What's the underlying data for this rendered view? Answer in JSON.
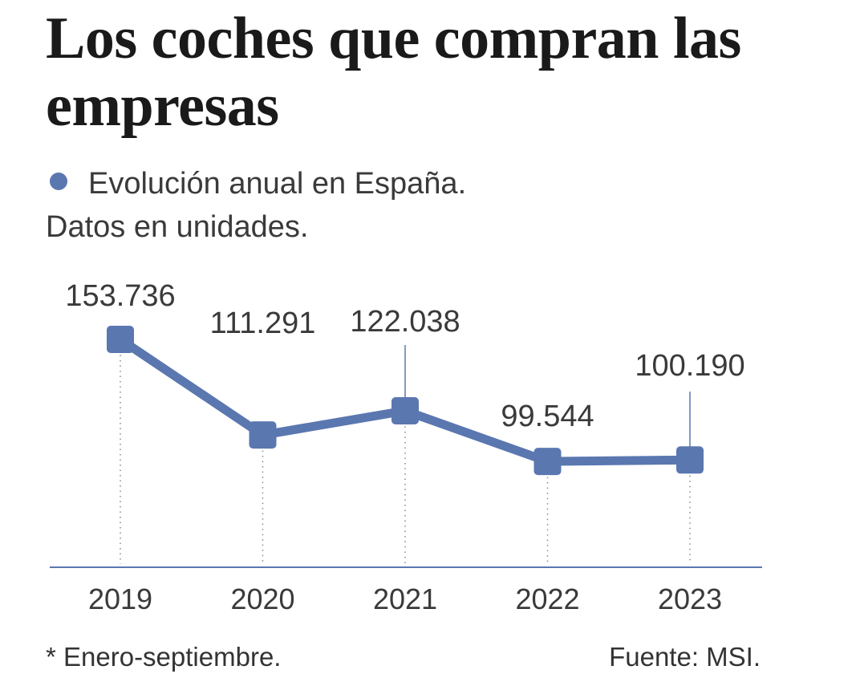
{
  "title": "Los coches que compran las empresas",
  "legend_text": "Evolución anual en España.",
  "subtitle": "Datos en unidades.",
  "footnote": "* Enero-septiembre.",
  "source": "Fuente: MSI.",
  "colors": {
    "series": "#5a77b0",
    "axis": "#5a77b0",
    "guide": "#888888",
    "label": "#3a3a3a"
  },
  "chart_data": {
    "type": "line",
    "x": [
      "2019",
      "2020",
      "2021",
      "2022",
      "2023"
    ],
    "series": [
      {
        "values": [
          153736,
          111291,
          122038,
          99544,
          100190
        ],
        "labels": [
          "153.736",
          "111.291",
          "122.038",
          "99.544",
          "100.190"
        ]
      }
    ],
    "ylim": [
      50000,
      160000
    ],
    "grid": false,
    "marker": "rounded-square",
    "vertical_guides": "dotted"
  }
}
